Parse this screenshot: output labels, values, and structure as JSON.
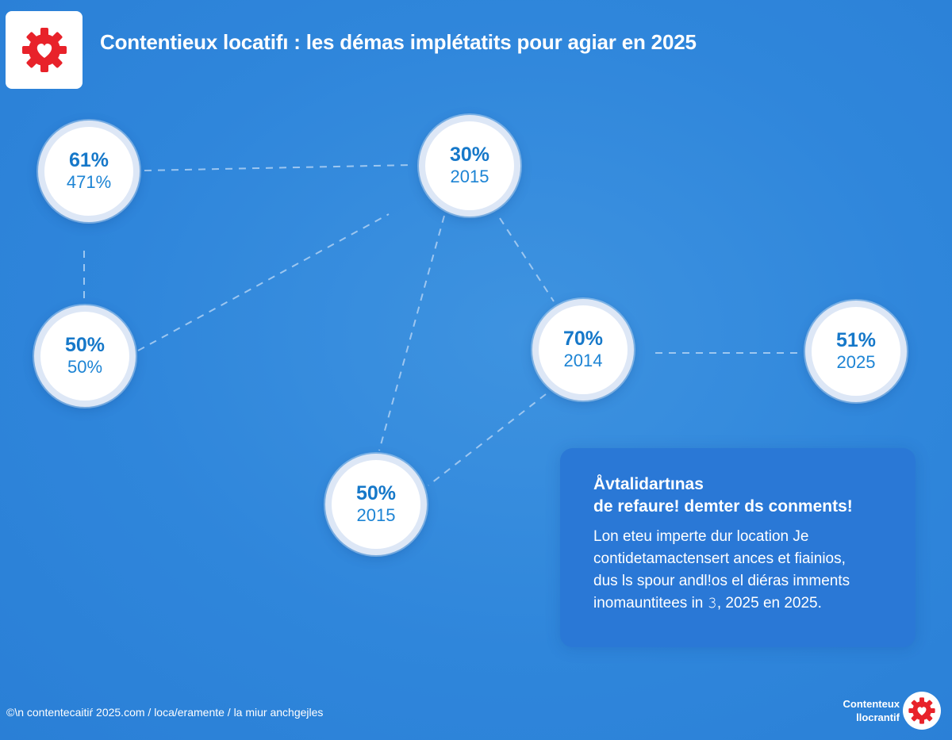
{
  "header": {
    "title": "Contentieux locatifı : les démas implétatits pour agiar en 2025",
    "logo_icon": "gear-heart-icon",
    "brand_color": "#e8222a"
  },
  "nodes": [
    {
      "id": "n1",
      "pct": "61%",
      "sub": "471%"
    },
    {
      "id": "n2",
      "pct": "30%",
      "sub": "2015"
    },
    {
      "id": "n3",
      "pct": "50%",
      "sub": "50%"
    },
    {
      "id": "n4",
      "pct": "70%",
      "sub": "2014"
    },
    {
      "id": "n5",
      "pct": "51%",
      "sub": "2025"
    },
    {
      "id": "n6",
      "pct": "50%",
      "sub": "2015"
    }
  ],
  "info": {
    "heading_line1": "Åvtalidartınas",
    "heading_line2": "de refaure! demter ds conments!",
    "body_lines": [
      "Lon eteu imperte dur location Je",
      "contidetamactensert ances et fiainios,",
      "dus ls spour andl!os el diéras imments",
      "inomauntitees in 𝟹, 2025 en 2025."
    ]
  },
  "footer": {
    "text": "©\\n contentecaitiŕ 2025.com / loca/eramente / la miur anchgejles",
    "brand_line1": "Contenteux",
    "brand_line2": "llocrantif"
  },
  "colors": {
    "background": "#2f86db",
    "node_text": "#1678c9",
    "info_box": "#2a78d6",
    "connector": "#a9cdf2"
  }
}
